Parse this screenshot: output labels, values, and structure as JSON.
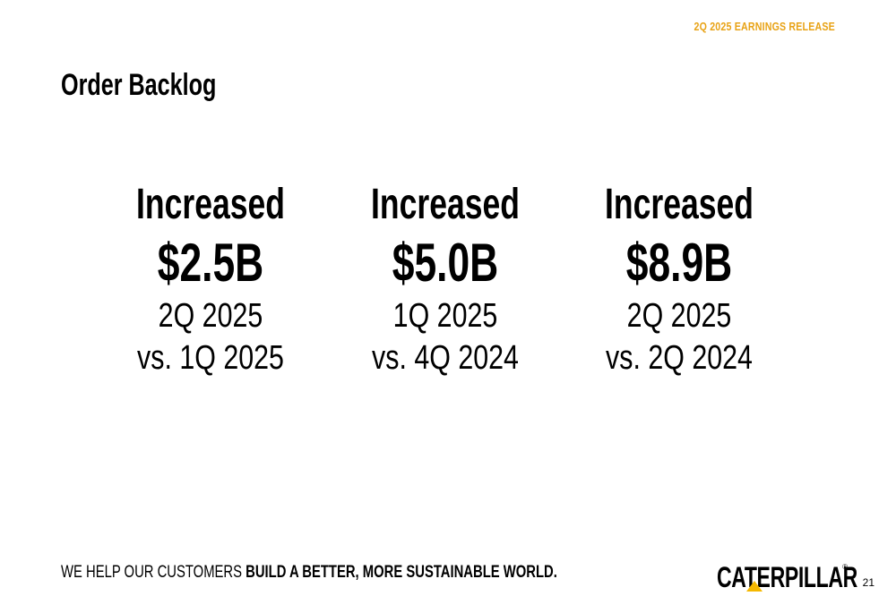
{
  "header": {
    "release_tag": "2Q 2025 EARNINGS RELEASE",
    "title": "Order Backlog"
  },
  "stats": [
    {
      "headline": "Increased",
      "amount": "$2.5B",
      "period": "2Q 2025",
      "comparison": "vs. 1Q 2025"
    },
    {
      "headline": "Increased",
      "amount": "$5.0B",
      "period": "1Q 2025",
      "comparison": "vs. 4Q 2024"
    },
    {
      "headline": "Increased",
      "amount": "$8.9B",
      "period": "2Q 2025",
      "comparison": "vs. 2Q 2024"
    }
  ],
  "footer": {
    "tagline_regular": "WE HELP OUR CUSTOMERS ",
    "tagline_bold": "BUILD A BETTER, MORE SUSTAINABLE WORLD.",
    "logo_text": "CATERPILLAR",
    "logo_mark": "®",
    "page_number": "21"
  },
  "colors": {
    "accent": "#e8a317",
    "text": "#000000",
    "logo_triangle": "#f5b800",
    "background": "#ffffff"
  },
  "icons": {
    "logo": "caterpillar-logo"
  }
}
